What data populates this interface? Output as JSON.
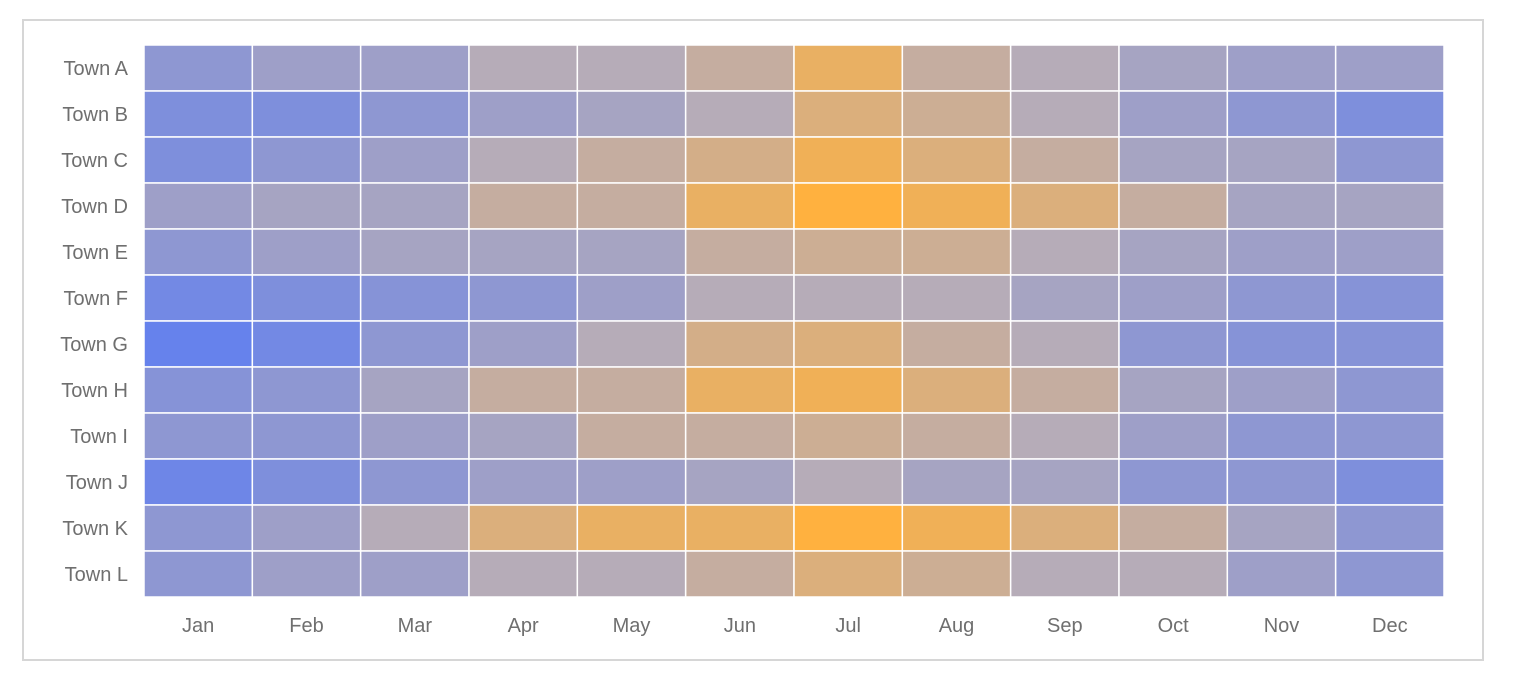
{
  "chart_data": {
    "type": "heatmap",
    "title": "",
    "xlabel": "",
    "ylabel": "",
    "x_categories": [
      "Jan",
      "Feb",
      "Mar",
      "Apr",
      "May",
      "Jun",
      "Jul",
      "Aug",
      "Sep",
      "Oct",
      "Nov",
      "Dec"
    ],
    "y_categories": [
      "Town A",
      "Town B",
      "Town C",
      "Town D",
      "Town E",
      "Town F",
      "Town G",
      "Town H",
      "Town I",
      "Town J",
      "Town K",
      "Town L"
    ],
    "values": [
      [
        0.25,
        0.35,
        0.35,
        0.5,
        0.5,
        0.6,
        0.85,
        0.6,
        0.5,
        0.4,
        0.35,
        0.35
      ],
      [
        0.15,
        0.15,
        0.25,
        0.35,
        0.4,
        0.5,
        0.75,
        0.65,
        0.5,
        0.35,
        0.25,
        0.15
      ],
      [
        0.15,
        0.25,
        0.35,
        0.5,
        0.6,
        0.7,
        0.9,
        0.75,
        0.6,
        0.4,
        0.4,
        0.25
      ],
      [
        0.35,
        0.4,
        0.4,
        0.6,
        0.6,
        0.85,
        1.0,
        0.9,
        0.75,
        0.6,
        0.4,
        0.4
      ],
      [
        0.25,
        0.35,
        0.4,
        0.4,
        0.4,
        0.6,
        0.65,
        0.65,
        0.5,
        0.4,
        0.35,
        0.35
      ],
      [
        0.08,
        0.15,
        0.2,
        0.25,
        0.35,
        0.5,
        0.5,
        0.5,
        0.4,
        0.35,
        0.25,
        0.2
      ],
      [
        0.0,
        0.08,
        0.25,
        0.35,
        0.5,
        0.7,
        0.75,
        0.6,
        0.5,
        0.25,
        0.2,
        0.2
      ],
      [
        0.2,
        0.25,
        0.4,
        0.6,
        0.6,
        0.85,
        0.9,
        0.75,
        0.6,
        0.4,
        0.35,
        0.25
      ],
      [
        0.25,
        0.25,
        0.35,
        0.4,
        0.6,
        0.6,
        0.65,
        0.6,
        0.5,
        0.35,
        0.25,
        0.25
      ],
      [
        0.05,
        0.15,
        0.25,
        0.35,
        0.35,
        0.4,
        0.5,
        0.4,
        0.4,
        0.25,
        0.25,
        0.15
      ],
      [
        0.25,
        0.35,
        0.5,
        0.75,
        0.85,
        0.85,
        1.0,
        0.9,
        0.75,
        0.6,
        0.4,
        0.25
      ],
      [
        0.25,
        0.35,
        0.35,
        0.5,
        0.5,
        0.6,
        0.75,
        0.65,
        0.5,
        0.5,
        0.35,
        0.25
      ]
    ],
    "value_range": [
      0,
      1
    ],
    "color_scale": {
      "low": "#6682ec",
      "mid": "#b6acb8",
      "high": "#ffb13f"
    },
    "grid": true,
    "legend": "none"
  },
  "colors": {
    "frame_border": "#d6d6d6",
    "cell_border": "#ffffff",
    "tick_label": "#6f6f6f",
    "background": "#ffffff"
  }
}
